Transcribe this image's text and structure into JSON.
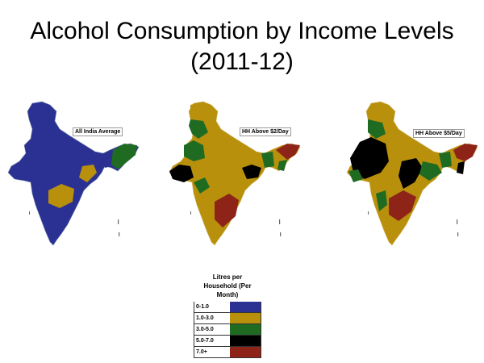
{
  "title_line1": "Alcohol Consumption by Income Levels",
  "title_line2": "(2011-12)",
  "maps": [
    {
      "label": "All India Average"
    },
    {
      "label": "HH Above $2/Day"
    },
    {
      "label": "HH Above $5/Day"
    }
  ],
  "legend": {
    "title_line1": "Litres per",
    "title_line2": "Household (Per",
    "title_line3": "Month)",
    "items": [
      {
        "label": "0-1.0",
        "color": "#2b3192"
      },
      {
        "label": "1.0-3.0",
        "color": "#b8900c"
      },
      {
        "label": "3.0-5.0",
        "color": "#1f6b22"
      },
      {
        "label": "5.0-7.0",
        "color": "#000000"
      },
      {
        "label": "7.0+",
        "color": "#8e2418"
      }
    ]
  }
}
